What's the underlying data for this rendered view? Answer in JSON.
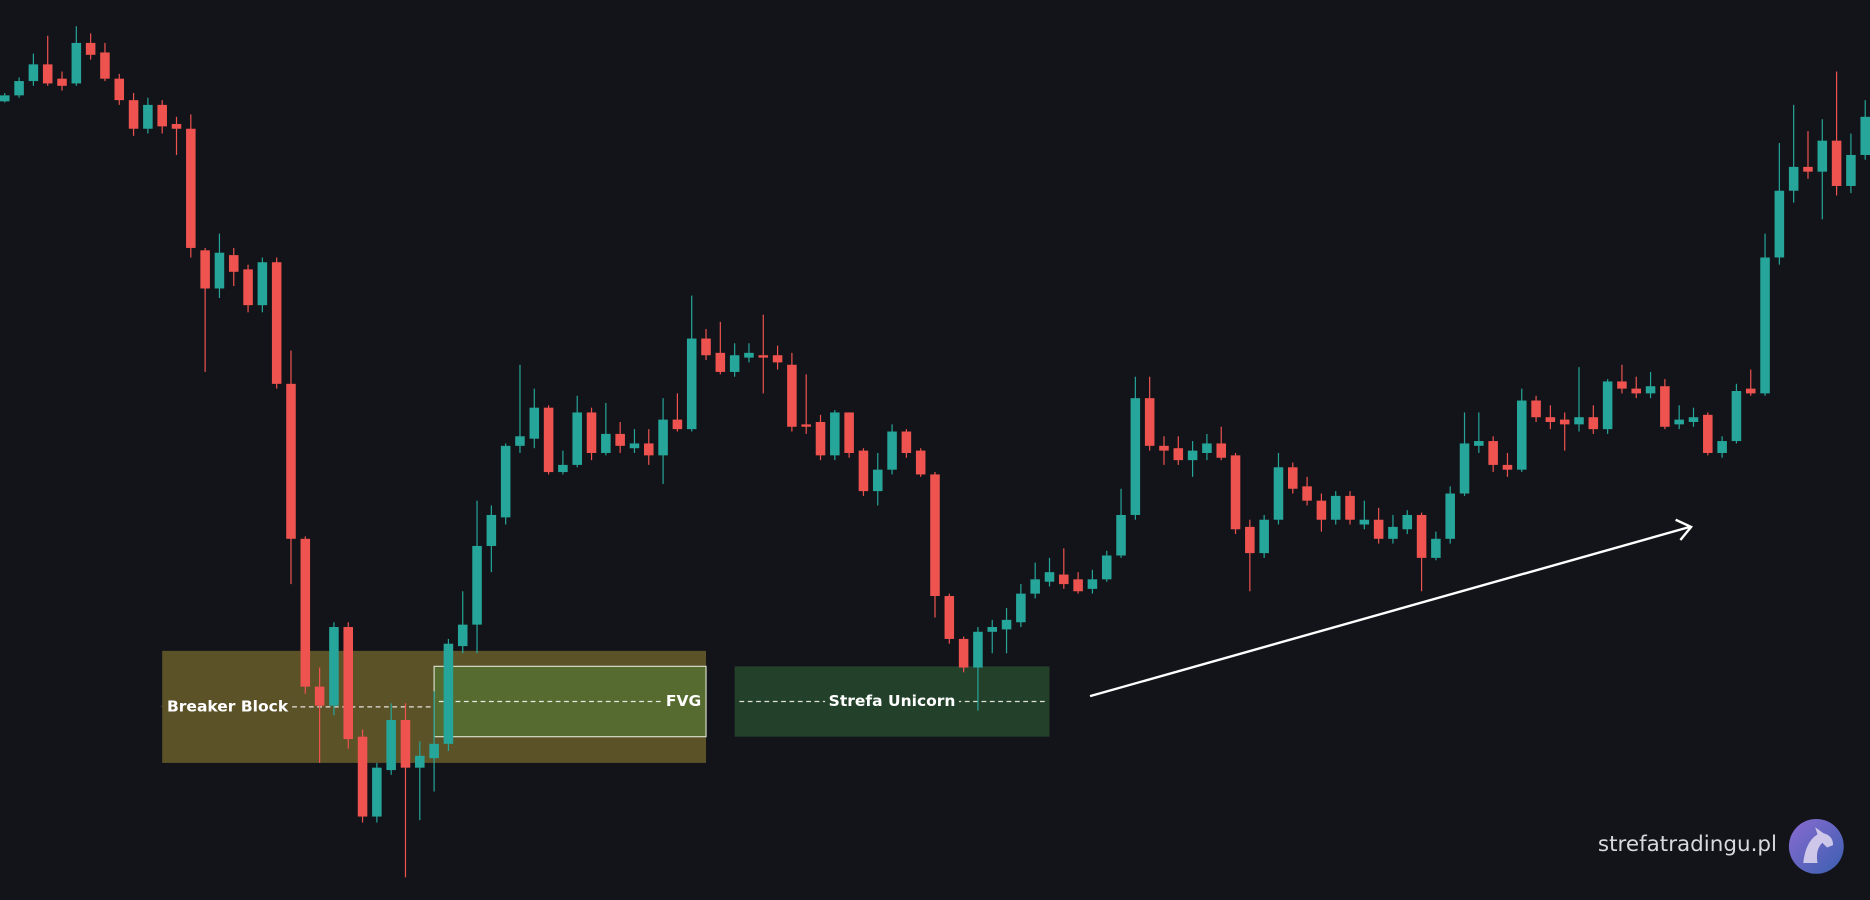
{
  "chart_data": {
    "type": "candlestick",
    "up_color": "#26a69a",
    "down_color": "#ef5350",
    "ylim": [
      0,
      755
    ],
    "open": [
      670,
      675,
      687,
      701,
      689,
      685,
      719,
      711,
      689,
      671,
      647,
      667,
      651,
      647,
      545,
      513,
      541,
      529,
      499,
      535,
      433,
      303,
      179,
      163,
      229,
      137,
      70,
      109,
      151,
      111,
      119,
      131,
      213,
      231,
      297,
      321,
      381,
      387,
      413,
      359,
      365,
      409,
      375,
      391,
      379,
      383,
      373,
      403,
      395,
      471,
      459,
      443,
      455,
      457,
      457,
      449,
      399,
      401,
      373,
      409,
      377,
      343,
      361,
      393,
      377,
      357,
      255,
      219,
      195,
      225,
      227,
      233,
      257,
      267,
      273,
      269,
      261,
      269,
      289,
      323,
      421,
      381,
      379,
      369,
      375,
      383,
      373,
      313,
      291,
      319,
      363,
      347,
      335,
      319,
      339,
      315,
      319,
      303,
      311,
      323,
      287,
      303,
      341,
      381,
      385,
      365,
      361,
      419,
      405,
      403,
      399,
      405,
      395,
      435,
      429,
      425,
      431,
      399,
      401,
      407,
      375,
      385,
      429,
      425,
      539,
      595,
      615,
      611,
      637,
      599,
      625
    ],
    "high": [
      677,
      690,
      710,
      725,
      695,
      733,
      727,
      719,
      693,
      677,
      673,
      671,
      657,
      659,
      547,
      559,
      547,
      533,
      539,
      539,
      461,
      305,
      195,
      233,
      233,
      143,
      115,
      165,
      165,
      133,
      175,
      219,
      259,
      335,
      331,
      383,
      449,
      429,
      415,
      377,
      423,
      413,
      417,
      401,
      395,
      395,
      421,
      425,
      507,
      479,
      485,
      467,
      467,
      491,
      465,
      459,
      441,
      407,
      411,
      409,
      379,
      375,
      399,
      395,
      379,
      359,
      257,
      221,
      229,
      235,
      245,
      265,
      283,
      287,
      295,
      275,
      277,
      293,
      345,
      439,
      439,
      389,
      389,
      385,
      391,
      397,
      375,
      319,
      323,
      375,
      367,
      355,
      341,
      343,
      343,
      335,
      329,
      323,
      327,
      325,
      309,
      347,
      409,
      409,
      389,
      375,
      429,
      423,
      415,
      409,
      447,
      415,
      437,
      449,
      439,
      443,
      437,
      415,
      413,
      409,
      389,
      433,
      445,
      559,
      635,
      667,
      645,
      655,
      695,
      643,
      671
    ],
    "low": [
      669,
      673,
      683,
      683,
      679,
      683,
      705,
      687,
      667,
      641,
      643,
      643,
      625,
      539,
      443,
      505,
      515,
      493,
      493,
      429,
      265,
      173,
      115,
      155,
      127,
      65,
      65,
      105,
      19,
      67,
      91,
      125,
      207,
      207,
      275,
      315,
      375,
      379,
      357,
      357,
      363,
      369,
      373,
      375,
      375,
      365,
      349,
      393,
      393,
      453,
      441,
      439,
      451,
      425,
      445,
      393,
      391,
      369,
      369,
      371,
      339,
      331,
      357,
      371,
      355,
      237,
      215,
      191,
      159,
      207,
      207,
      229,
      253,
      263,
      261,
      257,
      257,
      267,
      287,
      319,
      377,
      365,
      365,
      355,
      369,
      369,
      307,
      259,
      287,
      315,
      341,
      331,
      309,
      315,
      315,
      311,
      299,
      299,
      307,
      259,
      285,
      299,
      339,
      375,
      359,
      355,
      359,
      401,
      395,
      377,
      393,
      391,
      391,
      425,
      421,
      421,
      395,
      395,
      397,
      373,
      371,
      383,
      423,
      423,
      533,
      585,
      605,
      571,
      591,
      593,
      621
    ],
    "close": [
      675,
      687,
      701,
      685,
      683,
      719,
      709,
      689,
      671,
      647,
      667,
      649,
      647,
      547,
      513,
      543,
      527,
      499,
      535,
      433,
      303,
      179,
      163,
      229,
      135,
      70,
      111,
      151,
      111,
      121,
      131,
      215,
      231,
      297,
      323,
      381,
      389,
      413,
      359,
      365,
      409,
      375,
      391,
      381,
      383,
      373,
      403,
      395,
      471,
      457,
      443,
      457,
      459,
      455,
      451,
      397,
      397,
      373,
      409,
      375,
      343,
      361,
      393,
      375,
      357,
      255,
      219,
      195,
      225,
      229,
      235,
      257,
      269,
      275,
      265,
      259,
      269,
      289,
      323,
      421,
      381,
      377,
      369,
      377,
      383,
      371,
      311,
      291,
      319,
      363,
      345,
      335,
      319,
      339,
      319,
      319,
      303,
      313,
      323,
      287,
      303,
      341,
      383,
      385,
      365,
      361,
      419,
      405,
      401,
      399,
      405,
      395,
      435,
      429,
      425,
      431,
      397,
      403,
      405,
      375,
      385,
      427,
      425,
      539,
      595,
      615,
      611,
      637,
      599,
      625,
      657
    ],
    "zones": [
      {
        "label": "Breaker Block",
        "top": 209,
        "bottom": 115,
        "start": 11,
        "end": 49,
        "color": "#5b5228"
      },
      {
        "label": "FVG",
        "top": 196,
        "bottom": 137,
        "start": 30,
        "end": 49,
        "color": "#566b30"
      },
      {
        "label": "Strefa Unicorn",
        "top": 196,
        "bottom": 137,
        "start": 51,
        "end": 73,
        "color": "#22402a"
      }
    ]
  },
  "watermark": "strefatradingu.pl"
}
